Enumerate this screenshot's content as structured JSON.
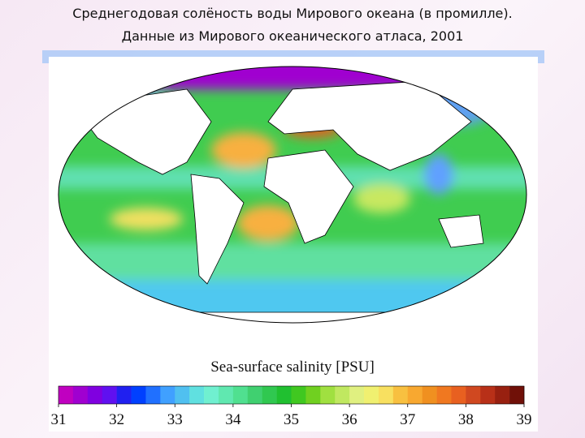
{
  "header": {
    "title": [
      "Среднегодовая солёность воды Мирового океана (в промилле).",
      "Данные из Мирового океанического атласа, 2001"
    ]
  },
  "legend": {
    "label": "Sea-surface salinity [PSU]",
    "range": [
      31,
      39
    ],
    "ticks": [
      31,
      32,
      33,
      34,
      35,
      36,
      37,
      38,
      39
    ],
    "colors": [
      "#c000c0",
      "#a000d0",
      "#8000e0",
      "#6010f0",
      "#2020f0",
      "#0040ff",
      "#2070ff",
      "#40a0ff",
      "#50c0f0",
      "#60e0e0",
      "#70f0d0",
      "#60e8b0",
      "#50e090",
      "#40d070",
      "#30c850",
      "#20c030",
      "#40c820",
      "#70d020",
      "#a0e040",
      "#c0e860",
      "#e0f080",
      "#f0f070",
      "#f8e060",
      "#f8c040",
      "#f8a830",
      "#f09020",
      "#f07820",
      "#e86020",
      "#d04820",
      "#b83018",
      "#982010",
      "#701008"
    ]
  }
}
